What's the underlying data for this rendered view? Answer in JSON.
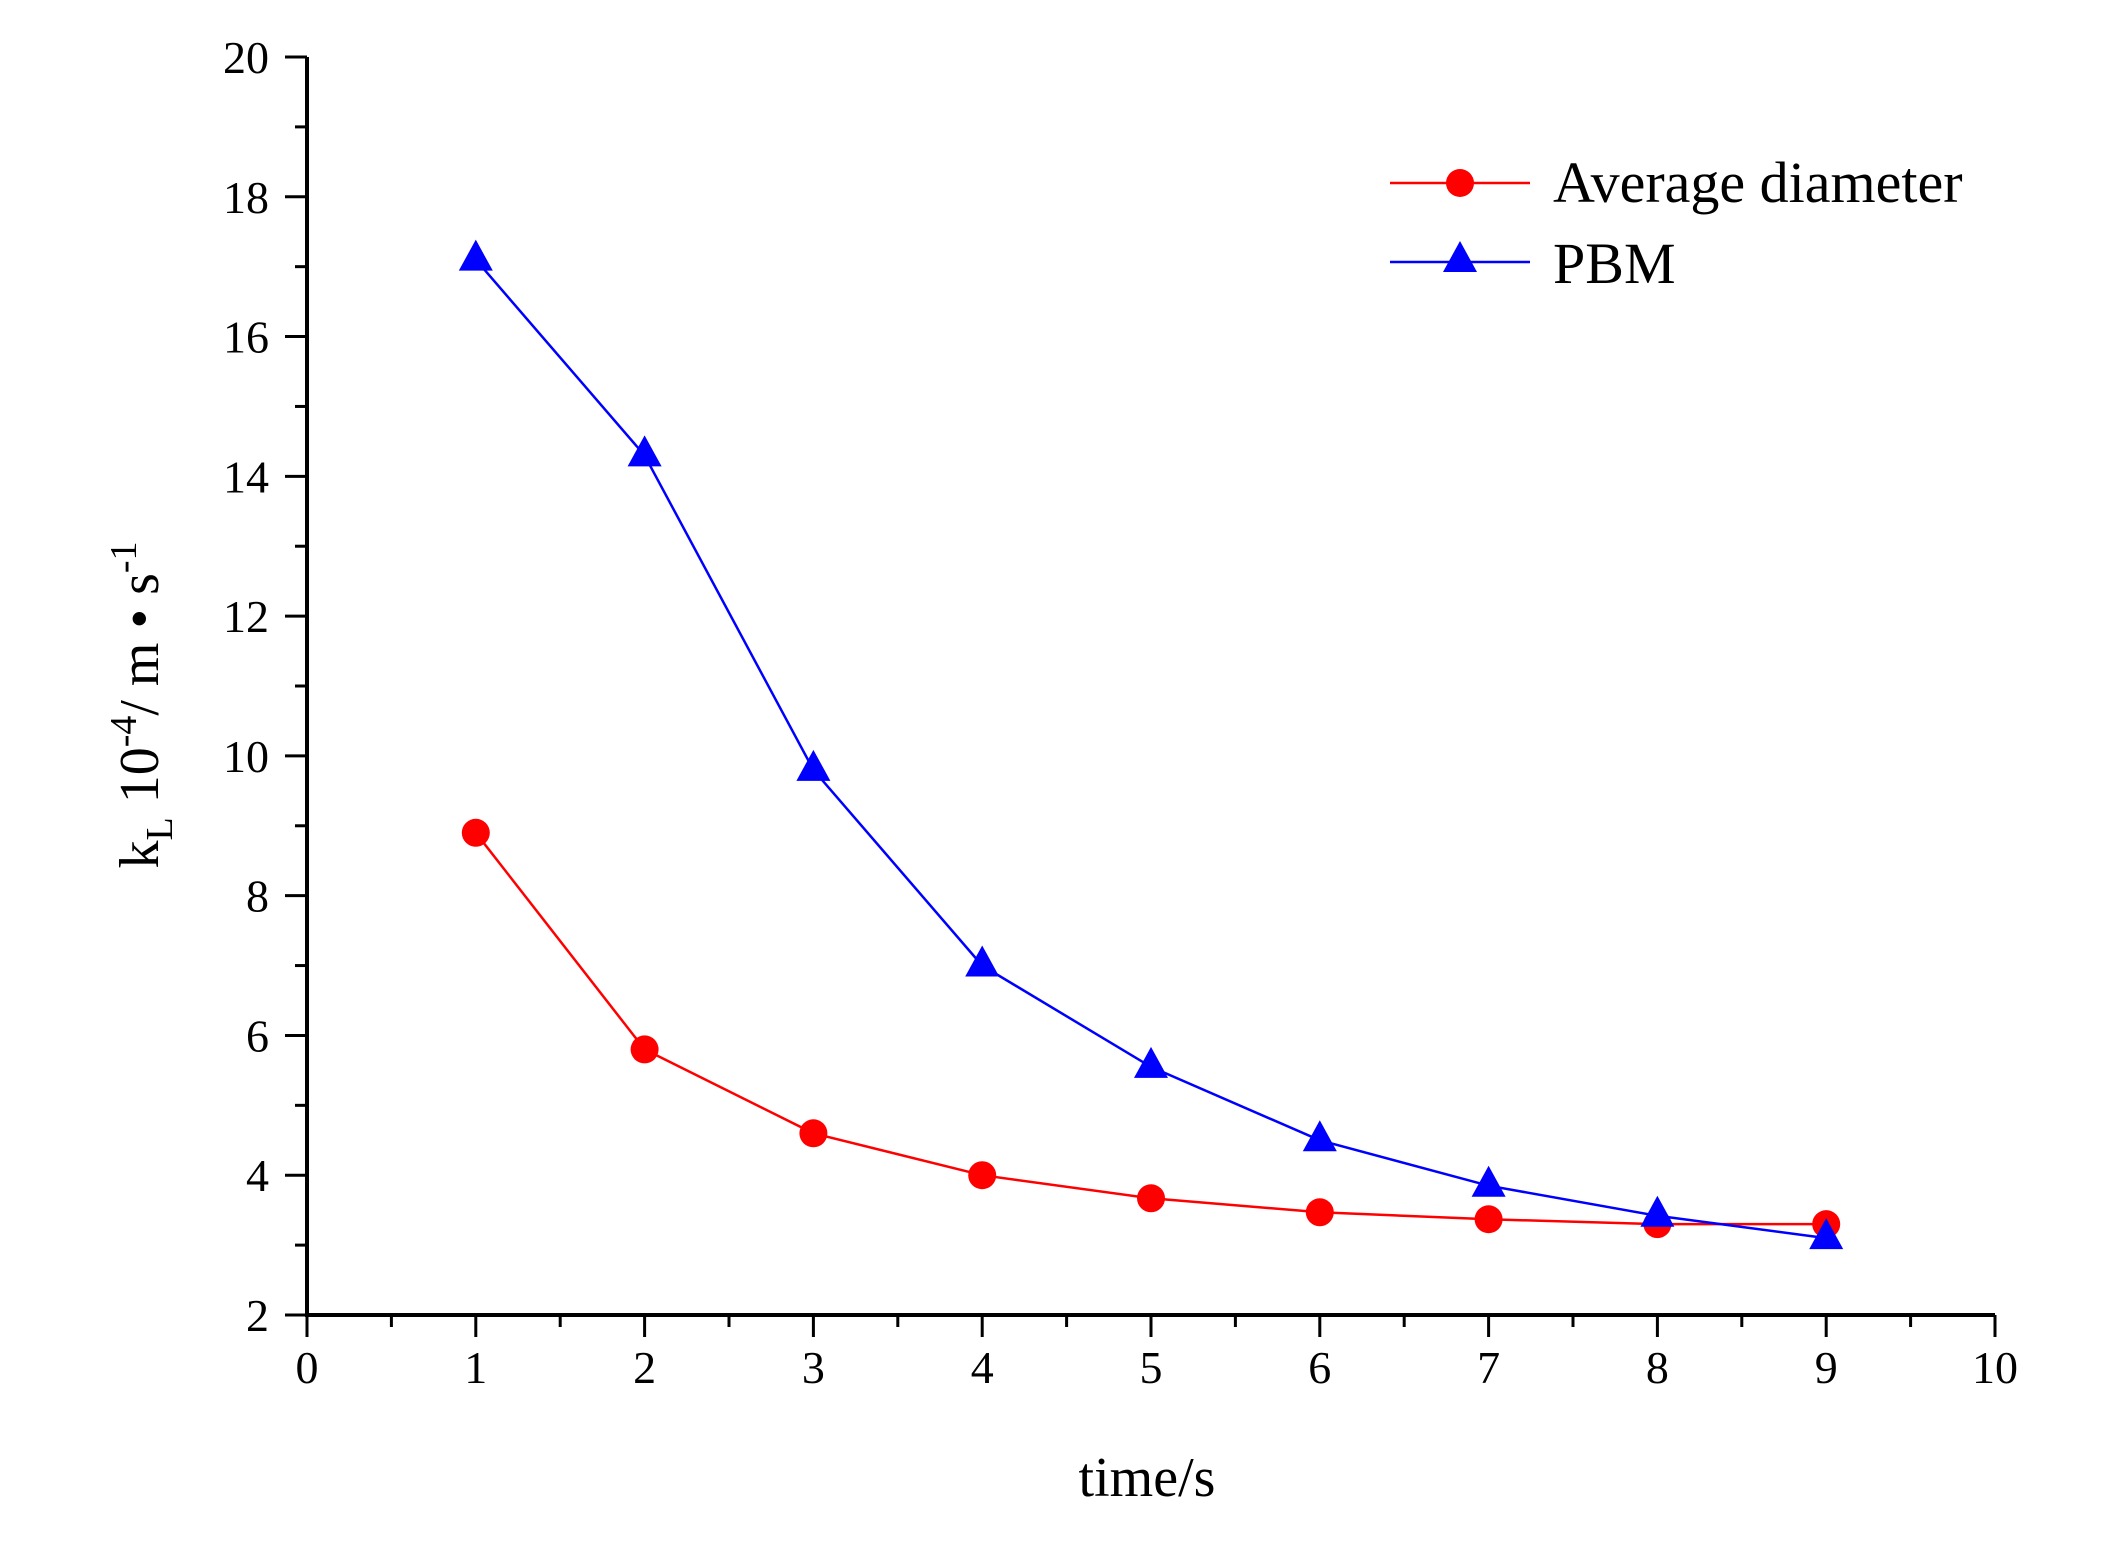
{
  "chart_data": {
    "type": "line",
    "title": "",
    "xlabel": "time/s",
    "ylabel": {
      "k": "k",
      "k_sub": "L",
      "base": " 10",
      "exp": "-4",
      "unit": "/ m • s",
      "unit_exp": "-1"
    },
    "xlim": [
      0,
      10
    ],
    "ylim": [
      2,
      20
    ],
    "xticks": [
      "0",
      "1",
      "2",
      "3",
      "4",
      "5",
      "6",
      "7",
      "8",
      "9",
      "10"
    ],
    "yticks": [
      "2",
      "4",
      "6",
      "8",
      "10",
      "12",
      "14",
      "16",
      "18",
      "20"
    ],
    "grid": false,
    "legend_position": "top-right",
    "x": [
      1,
      2,
      3,
      4,
      5,
      6,
      7,
      8,
      9
    ],
    "series": [
      {
        "name": "Average diameter",
        "marker": "circle",
        "color": "#ff0000",
        "values": [
          8.9,
          5.8,
          4.6,
          4.0,
          3.67,
          3.47,
          3.37,
          3.3,
          3.3
        ]
      },
      {
        "name": "PBM",
        "marker": "triangle",
        "color": "#0000ff",
        "values": [
          17.1,
          14.3,
          9.8,
          7.0,
          5.55,
          4.5,
          3.85,
          3.42,
          3.1
        ]
      }
    ]
  }
}
